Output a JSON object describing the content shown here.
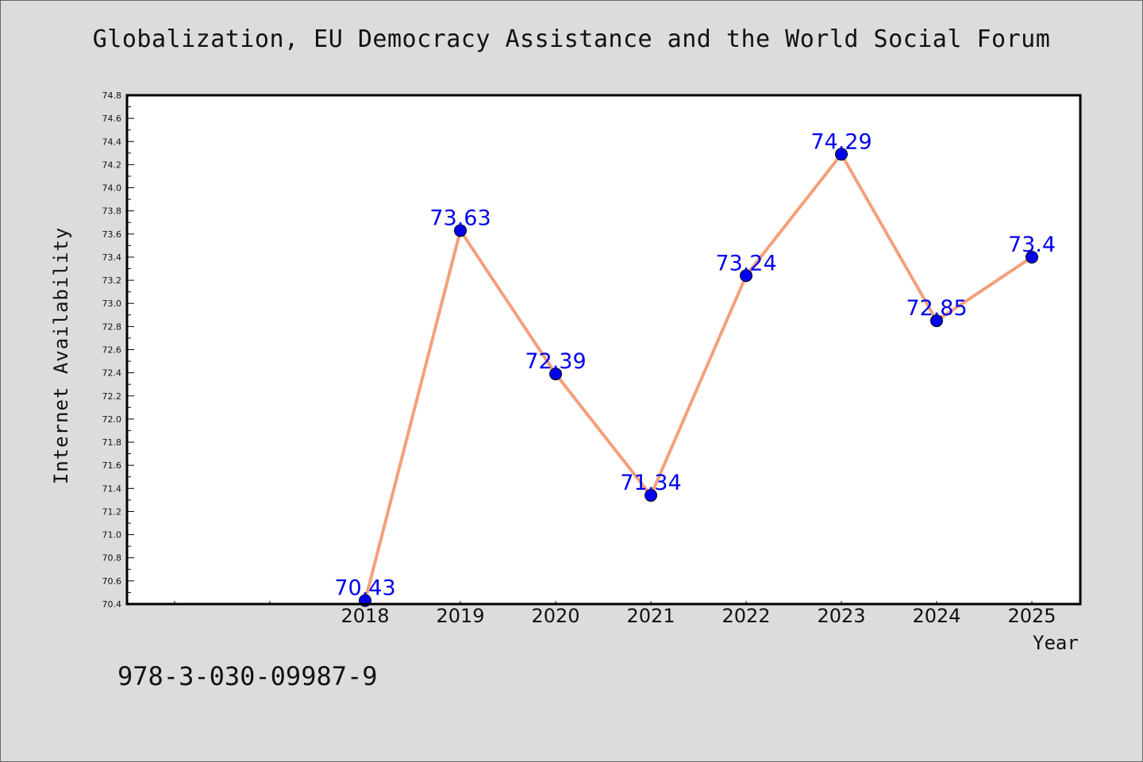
{
  "title": "Globalization, EU Democracy Assistance and the World Social Forum",
  "isbn": "978-3-030-09987-9",
  "colors": {
    "background": "#dcdcdc",
    "plot_background": "#ffffff",
    "line": "#f4a07a",
    "marker": "#0000ee",
    "data_label": "#0000ee"
  },
  "chart_data": {
    "type": "line",
    "xlabel": "Year",
    "ylabel": "Internet Availability",
    "x": [
      "2018",
      "2019",
      "2020",
      "2021",
      "2022",
      "2023",
      "2024",
      "2025"
    ],
    "x_slots_before_data": 2,
    "series": [
      {
        "values": [
          70.43,
          73.63,
          72.39,
          71.34,
          73.24,
          74.29,
          72.85,
          73.4
        ],
        "labels": [
          "70.43",
          "73.63",
          "72.39",
          "71.34",
          "73.24",
          "74.29",
          "72.85",
          "73.4"
        ]
      }
    ],
    "ylim": [
      70.4,
      74.8
    ],
    "yticks": [
      "70.4",
      "70.6",
      "70.8",
      "71.0",
      "71.2",
      "71.4",
      "71.6",
      "71.8",
      "72.0",
      "72.2",
      "72.4",
      "72.6",
      "72.8",
      "73.0",
      "73.2",
      "73.4",
      "73.6",
      "73.8",
      "74.0",
      "74.2",
      "74.4",
      "74.6",
      "74.8"
    ],
    "grid": false,
    "legend": "none"
  }
}
